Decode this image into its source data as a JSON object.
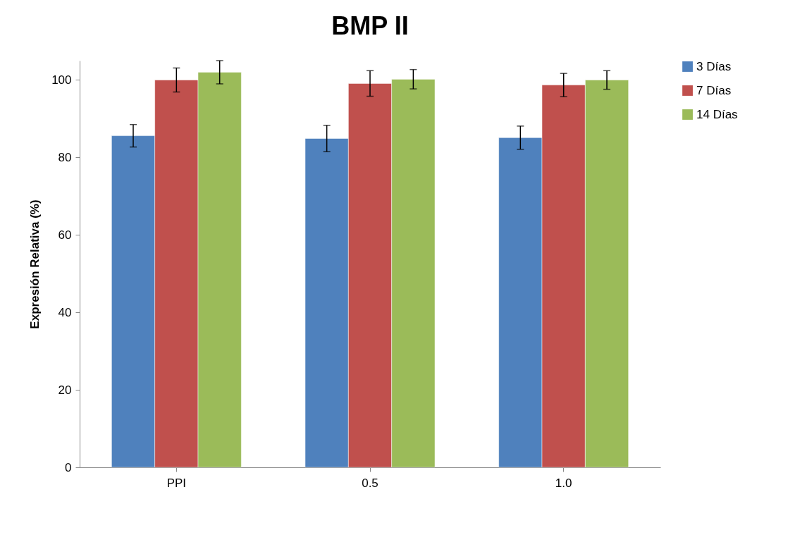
{
  "chart_data": {
    "type": "bar",
    "title": "BMP II",
    "ylabel": "Expresión Relativa (%)",
    "categories": [
      "PPI",
      "0.5",
      "1.0"
    ],
    "series": [
      {
        "name": "3 Días",
        "color": "#4f81bd",
        "values": [
          85.6,
          84.9,
          85.1
        ],
        "errors": [
          2.9,
          3.4,
          3.0
        ]
      },
      {
        "name": "7 Días",
        "color": "#c0504d",
        "values": [
          100,
          99.1,
          98.7
        ],
        "errors": [
          3.1,
          3.3,
          3.0
        ]
      },
      {
        "name": "14 Días",
        "color": "#9bbb59",
        "values": [
          102,
          100.2,
          100
        ],
        "errors": [
          3.0,
          2.5,
          2.4
        ]
      }
    ],
    "ylim": [
      0,
      105
    ],
    "yticks": [
      0,
      20,
      40,
      60,
      80,
      100
    ],
    "grid": false,
    "legend": "right"
  }
}
